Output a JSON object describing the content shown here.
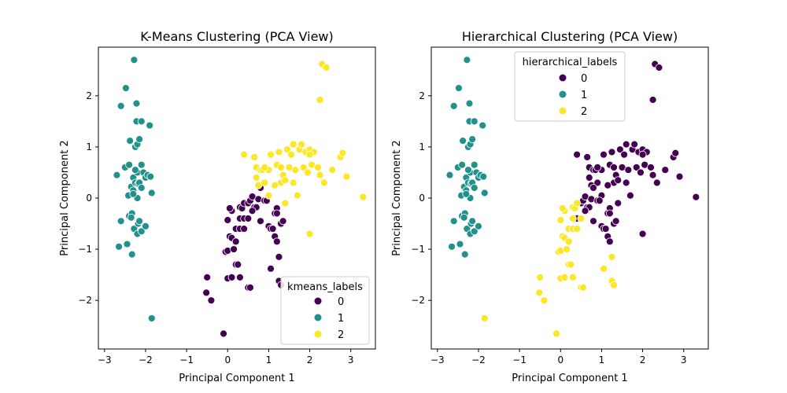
{
  "chart_data": [
    {
      "type": "scatter",
      "title": "K-Means Clustering (PCA View)",
      "xlabel": "Principal Component 1",
      "ylabel": "Principal Component 2",
      "xlim": [
        -3.15,
        3.6
      ],
      "ylim": [
        -2.95,
        2.95
      ],
      "xticks": [
        -3,
        -2,
        -1,
        0,
        1,
        2,
        3
      ],
      "yticks": [
        -2,
        -1,
        0,
        1,
        2
      ],
      "xtick_labels": [
        "−3",
        "−2",
        "−1",
        "0",
        "1",
        "2",
        "3"
      ],
      "ytick_labels": [
        "−2",
        "−1",
        "0",
        "1",
        "2"
      ],
      "grid": false,
      "legend": {
        "title": "kmeans_labels",
        "placement": "lower-right",
        "entries": [
          "0",
          "1",
          "2"
        ]
      },
      "colors": {
        "0": "#440154",
        "1": "#21918c",
        "2": "#fde725"
      },
      "points": {
        "0": [
          [
            -0.5,
            -1.55
          ],
          [
            -0.52,
            -1.85
          ],
          [
            -0.4,
            -2.0
          ],
          [
            -0.1,
            -2.65
          ],
          [
            -0.05,
            -1.05
          ],
          [
            0.0,
            -1.03
          ],
          [
            0.0,
            -1.57
          ],
          [
            0.1,
            -1.55
          ],
          [
            0.05,
            -0.75
          ],
          [
            0.1,
            -0.78
          ],
          [
            0.15,
            -1.0
          ],
          [
            0.2,
            -0.85
          ],
          [
            0.2,
            -1.3
          ],
          [
            0.25,
            -1.3
          ],
          [
            0.3,
            -1.55
          ],
          [
            0.2,
            -0.6
          ],
          [
            0.3,
            -0.6
          ],
          [
            0.3,
            -0.4
          ],
          [
            0.4,
            -0.4
          ],
          [
            0.4,
            -0.6
          ],
          [
            0.5,
            -0.4
          ],
          [
            0.5,
            -1.75
          ],
          [
            0.55,
            -1.75
          ],
          [
            0.0,
            -0.43
          ],
          [
            0.1,
            -0.25
          ],
          [
            0.05,
            -0.2
          ],
          [
            0.3,
            -0.18
          ],
          [
            0.35,
            -0.2
          ],
          [
            0.4,
            -0.1
          ],
          [
            0.5,
            -0.1
          ],
          [
            0.55,
            -0.05
          ],
          [
            0.6,
            0.03
          ],
          [
            0.65,
            -0.18
          ],
          [
            0.7,
            -0.18
          ],
          [
            0.75,
            -0.02
          ],
          [
            0.8,
            0.2
          ],
          [
            0.8,
            -0.45
          ],
          [
            0.9,
            -0.05
          ],
          [
            0.95,
            -0.05
          ],
          [
            1.0,
            -0.55
          ],
          [
            1.05,
            -0.6
          ],
          [
            1.05,
            -1.38
          ],
          [
            1.1,
            -0.6
          ],
          [
            1.15,
            -0.3
          ],
          [
            1.15,
            -0.75
          ],
          [
            1.2,
            -0.85
          ],
          [
            1.2,
            -0.2
          ],
          [
            1.25,
            -1.15
          ],
          [
            1.25,
            -1.62
          ],
          [
            1.3,
            -1.7
          ],
          [
            1.3,
            -0.5
          ],
          [
            1.35,
            -0.45
          ],
          [
            0.6,
            -0.25
          ],
          [
            1.2,
            -0.3
          ]
        ],
        "1": [
          [
            -2.7,
            0.45
          ],
          [
            -2.65,
            -0.95
          ],
          [
            -2.6,
            1.8
          ],
          [
            -2.6,
            -0.45
          ],
          [
            -2.5,
            0.6
          ],
          [
            -2.48,
            2.15
          ],
          [
            -2.45,
            -0.9
          ],
          [
            -2.42,
            0.05
          ],
          [
            -2.4,
            0.65
          ],
          [
            -2.4,
            -0.35
          ],
          [
            -2.38,
            1.12
          ],
          [
            -2.35,
            0.22
          ],
          [
            -2.33,
            -0.3
          ],
          [
            -2.33,
            -1.1
          ],
          [
            -2.3,
            0.4
          ],
          [
            -2.3,
            0.15
          ],
          [
            -2.28,
            2.7
          ],
          [
            -2.28,
            -0.6
          ],
          [
            -2.25,
            1.0
          ],
          [
            -2.25,
            0.3
          ],
          [
            -2.22,
            1.5
          ],
          [
            -2.22,
            1.85
          ],
          [
            -2.2,
            1.05
          ],
          [
            -2.2,
            0.5
          ],
          [
            -2.2,
            0.0
          ],
          [
            -2.2,
            -0.7
          ],
          [
            -2.18,
            0.28
          ],
          [
            -2.18,
            -0.5
          ],
          [
            -2.15,
            1.15
          ],
          [
            -2.15,
            0.3
          ],
          [
            -2.15,
            -0.45
          ],
          [
            -2.1,
            1.5
          ],
          [
            -2.1,
            0.65
          ],
          [
            -2.1,
            0.2
          ],
          [
            -2.1,
            -0.65
          ],
          [
            -2.05,
            0.5
          ],
          [
            -2.0,
            0.4
          ],
          [
            -2.0,
            -0.55
          ],
          [
            -1.95,
            0.45
          ],
          [
            -1.9,
            1.42
          ],
          [
            -1.88,
            0.42
          ],
          [
            -1.85,
            0.1
          ],
          [
            -1.85,
            -2.35
          ],
          [
            -2.3,
            0.08
          ],
          [
            -2.35,
            -0.38
          ],
          [
            -2.25,
            0.55
          ]
        ],
        "2": [
          [
            0.4,
            0.85
          ],
          [
            0.65,
            0.8
          ],
          [
            0.7,
            0.6
          ],
          [
            0.7,
            0.4
          ],
          [
            0.75,
            0.25
          ],
          [
            0.8,
            0.55
          ],
          [
            0.85,
            0.55
          ],
          [
            0.9,
            0.3
          ],
          [
            1.0,
            0.05
          ],
          [
            1.0,
            0.55
          ],
          [
            1.05,
            0.85
          ],
          [
            1.2,
            0.65
          ],
          [
            1.25,
            0.9
          ],
          [
            1.3,
            0.3
          ],
          [
            1.35,
            0.45
          ],
          [
            1.4,
            0.35
          ],
          [
            1.45,
            0.95
          ],
          [
            1.5,
            0.6
          ],
          [
            1.55,
            0.85
          ],
          [
            1.6,
            1.05
          ],
          [
            1.6,
            0.3
          ],
          [
            1.65,
            0.55
          ],
          [
            1.7,
            0.05
          ],
          [
            1.75,
            0.95
          ],
          [
            1.8,
            1.05
          ],
          [
            1.85,
            0.6
          ],
          [
            1.9,
            0.9
          ],
          [
            1.95,
            0.5
          ],
          [
            2.0,
            0.95
          ],
          [
            2.05,
            0.65
          ],
          [
            2.1,
            0.9
          ],
          [
            2.2,
            0.6
          ],
          [
            2.25,
            0.45
          ],
          [
            2.35,
            0.3
          ],
          [
            2.3,
            2.62
          ],
          [
            2.4,
            2.55
          ],
          [
            2.25,
            1.92
          ],
          [
            2.55,
            0.55
          ],
          [
            2.75,
            0.8
          ],
          [
            2.8,
            0.88
          ],
          [
            2.9,
            0.42
          ],
          [
            3.3,
            0.02
          ],
          [
            2.0,
            -0.7
          ],
          [
            1.4,
            -0.1
          ],
          [
            1.15,
            0.25
          ],
          [
            0.9,
            0.6
          ],
          [
            1.3,
            0.6
          ],
          [
            2.0,
            0.85
          ]
        ]
      }
    },
    {
      "type": "scatter",
      "title": "Hierarchical Clustering (PCA View)",
      "xlabel": "Principal Component 1",
      "ylabel": "Principal Component 2",
      "xlim": [
        -3.15,
        3.6
      ],
      "ylim": [
        -2.95,
        2.95
      ],
      "xticks": [
        -3,
        -2,
        -1,
        0,
        1,
        2,
        3
      ],
      "yticks": [
        -2,
        -1,
        0,
        1,
        2
      ],
      "xtick_labels": [
        "−3",
        "−2",
        "−1",
        "0",
        "1",
        "2",
        "3"
      ],
      "ytick_labels": [
        "−2",
        "−1",
        "0",
        "1",
        "2"
      ],
      "grid": false,
      "legend": {
        "title": "hierarchical_labels",
        "placement": "upper-center",
        "entries": [
          "0",
          "1",
          "2"
        ]
      },
      "colors": {
        "0": "#440154",
        "1": "#21918c",
        "2": "#fde725"
      },
      "points": {
        "0": [
          [
            0.4,
            0.85
          ],
          [
            0.65,
            0.8
          ],
          [
            0.7,
            0.6
          ],
          [
            0.7,
            0.4
          ],
          [
            0.75,
            0.25
          ],
          [
            0.8,
            0.55
          ],
          [
            0.85,
            0.55
          ],
          [
            0.9,
            0.3
          ],
          [
            1.0,
            0.05
          ],
          [
            1.0,
            0.55
          ],
          [
            1.05,
            0.85
          ],
          [
            1.2,
            0.65
          ],
          [
            1.25,
            0.9
          ],
          [
            1.3,
            0.3
          ],
          [
            1.35,
            0.45
          ],
          [
            1.4,
            0.35
          ],
          [
            1.45,
            0.95
          ],
          [
            1.5,
            0.6
          ],
          [
            1.55,
            0.85
          ],
          [
            1.6,
            1.05
          ],
          [
            1.6,
            0.3
          ],
          [
            1.65,
            0.55
          ],
          [
            1.7,
            0.05
          ],
          [
            1.75,
            0.95
          ],
          [
            1.8,
            1.05
          ],
          [
            1.85,
            0.6
          ],
          [
            1.9,
            0.9
          ],
          [
            1.95,
            0.5
          ],
          [
            2.0,
            0.95
          ],
          [
            2.05,
            0.65
          ],
          [
            2.1,
            0.9
          ],
          [
            2.2,
            0.6
          ],
          [
            2.25,
            0.45
          ],
          [
            2.35,
            0.3
          ],
          [
            2.3,
            2.62
          ],
          [
            2.4,
            2.55
          ],
          [
            2.25,
            1.92
          ],
          [
            2.55,
            0.55
          ],
          [
            2.75,
            0.8
          ],
          [
            2.8,
            0.88
          ],
          [
            2.9,
            0.42
          ],
          [
            3.3,
            0.02
          ],
          [
            2.0,
            -0.7
          ],
          [
            1.4,
            -0.1
          ],
          [
            1.15,
            0.25
          ],
          [
            0.9,
            0.6
          ],
          [
            1.3,
            0.6
          ],
          [
            2.0,
            0.85
          ],
          [
            0.4,
            -0.4
          ],
          [
            0.5,
            -0.1
          ],
          [
            0.55,
            -0.05
          ],
          [
            0.6,
            0.03
          ],
          [
            0.65,
            -0.18
          ],
          [
            0.7,
            -0.18
          ],
          [
            0.75,
            -0.02
          ],
          [
            0.8,
            0.2
          ],
          [
            0.8,
            -0.45
          ],
          [
            0.9,
            -0.05
          ],
          [
            0.95,
            -0.05
          ],
          [
            1.0,
            -0.55
          ],
          [
            1.05,
            -0.6
          ],
          [
            1.1,
            -0.6
          ],
          [
            1.15,
            -0.3
          ],
          [
            1.15,
            -0.75
          ],
          [
            1.2,
            -0.85
          ],
          [
            1.2,
            -0.2
          ],
          [
            1.3,
            -0.5
          ],
          [
            1.35,
            -0.45
          ],
          [
            1.2,
            -0.3
          ],
          [
            0.6,
            -0.25
          ]
        ],
        "1": [
          [
            -2.7,
            0.45
          ],
          [
            -2.65,
            -0.95
          ],
          [
            -2.6,
            1.8
          ],
          [
            -2.6,
            -0.45
          ],
          [
            -2.5,
            0.6
          ],
          [
            -2.48,
            2.15
          ],
          [
            -2.45,
            -0.9
          ],
          [
            -2.42,
            0.05
          ],
          [
            -2.4,
            0.65
          ],
          [
            -2.4,
            -0.35
          ],
          [
            -2.38,
            1.12
          ],
          [
            -2.35,
            0.22
          ],
          [
            -2.33,
            -0.3
          ],
          [
            -2.33,
            -1.1
          ],
          [
            -2.3,
            0.4
          ],
          [
            -2.3,
            0.15
          ],
          [
            -2.28,
            2.7
          ],
          [
            -2.28,
            -0.6
          ],
          [
            -2.25,
            1.0
          ],
          [
            -2.25,
            0.3
          ],
          [
            -2.22,
            1.5
          ],
          [
            -2.22,
            1.85
          ],
          [
            -2.2,
            1.05
          ],
          [
            -2.2,
            0.5
          ],
          [
            -2.2,
            0.0
          ],
          [
            -2.2,
            -0.7
          ],
          [
            -2.18,
            0.28
          ],
          [
            -2.18,
            -0.5
          ],
          [
            -2.15,
            1.15
          ],
          [
            -2.15,
            0.3
          ],
          [
            -2.15,
            -0.45
          ],
          [
            -2.1,
            1.5
          ],
          [
            -2.1,
            0.65
          ],
          [
            -2.1,
            0.2
          ],
          [
            -2.1,
            -0.65
          ],
          [
            -2.05,
            0.5
          ],
          [
            -2.0,
            0.4
          ],
          [
            -2.0,
            -0.55
          ],
          [
            -1.95,
            0.45
          ],
          [
            -1.9,
            1.42
          ],
          [
            -1.88,
            0.42
          ],
          [
            -1.85,
            0.1
          ],
          [
            -2.3,
            0.08
          ],
          [
            -2.35,
            -0.38
          ],
          [
            -2.25,
            0.55
          ]
        ],
        "2": [
          [
            -0.5,
            -1.55
          ],
          [
            -0.52,
            -1.85
          ],
          [
            -0.4,
            -2.0
          ],
          [
            -0.1,
            -2.65
          ],
          [
            -0.05,
            -1.05
          ],
          [
            0.0,
            -1.03
          ],
          [
            0.0,
            -1.57
          ],
          [
            0.1,
            -1.55
          ],
          [
            0.05,
            -0.75
          ],
          [
            0.1,
            -0.78
          ],
          [
            0.15,
            -1.0
          ],
          [
            0.2,
            -0.85
          ],
          [
            0.2,
            -1.3
          ],
          [
            0.25,
            -1.3
          ],
          [
            0.3,
            -1.55
          ],
          [
            0.2,
            -0.6
          ],
          [
            0.3,
            -0.6
          ],
          [
            0.3,
            -0.4
          ],
          [
            0.5,
            -0.4
          ],
          [
            0.5,
            -1.75
          ],
          [
            0.4,
            -0.6
          ],
          [
            0.55,
            -1.75
          ],
          [
            0.0,
            -0.43
          ],
          [
            0.1,
            -0.25
          ],
          [
            0.05,
            -0.2
          ],
          [
            0.3,
            -0.18
          ],
          [
            0.35,
            -0.2
          ],
          [
            0.4,
            -0.1
          ],
          [
            1.05,
            -1.38
          ],
          [
            1.25,
            -1.15
          ],
          [
            1.25,
            -1.62
          ],
          [
            1.3,
            -1.7
          ],
          [
            -1.85,
            -2.35
          ]
        ]
      }
    }
  ]
}
